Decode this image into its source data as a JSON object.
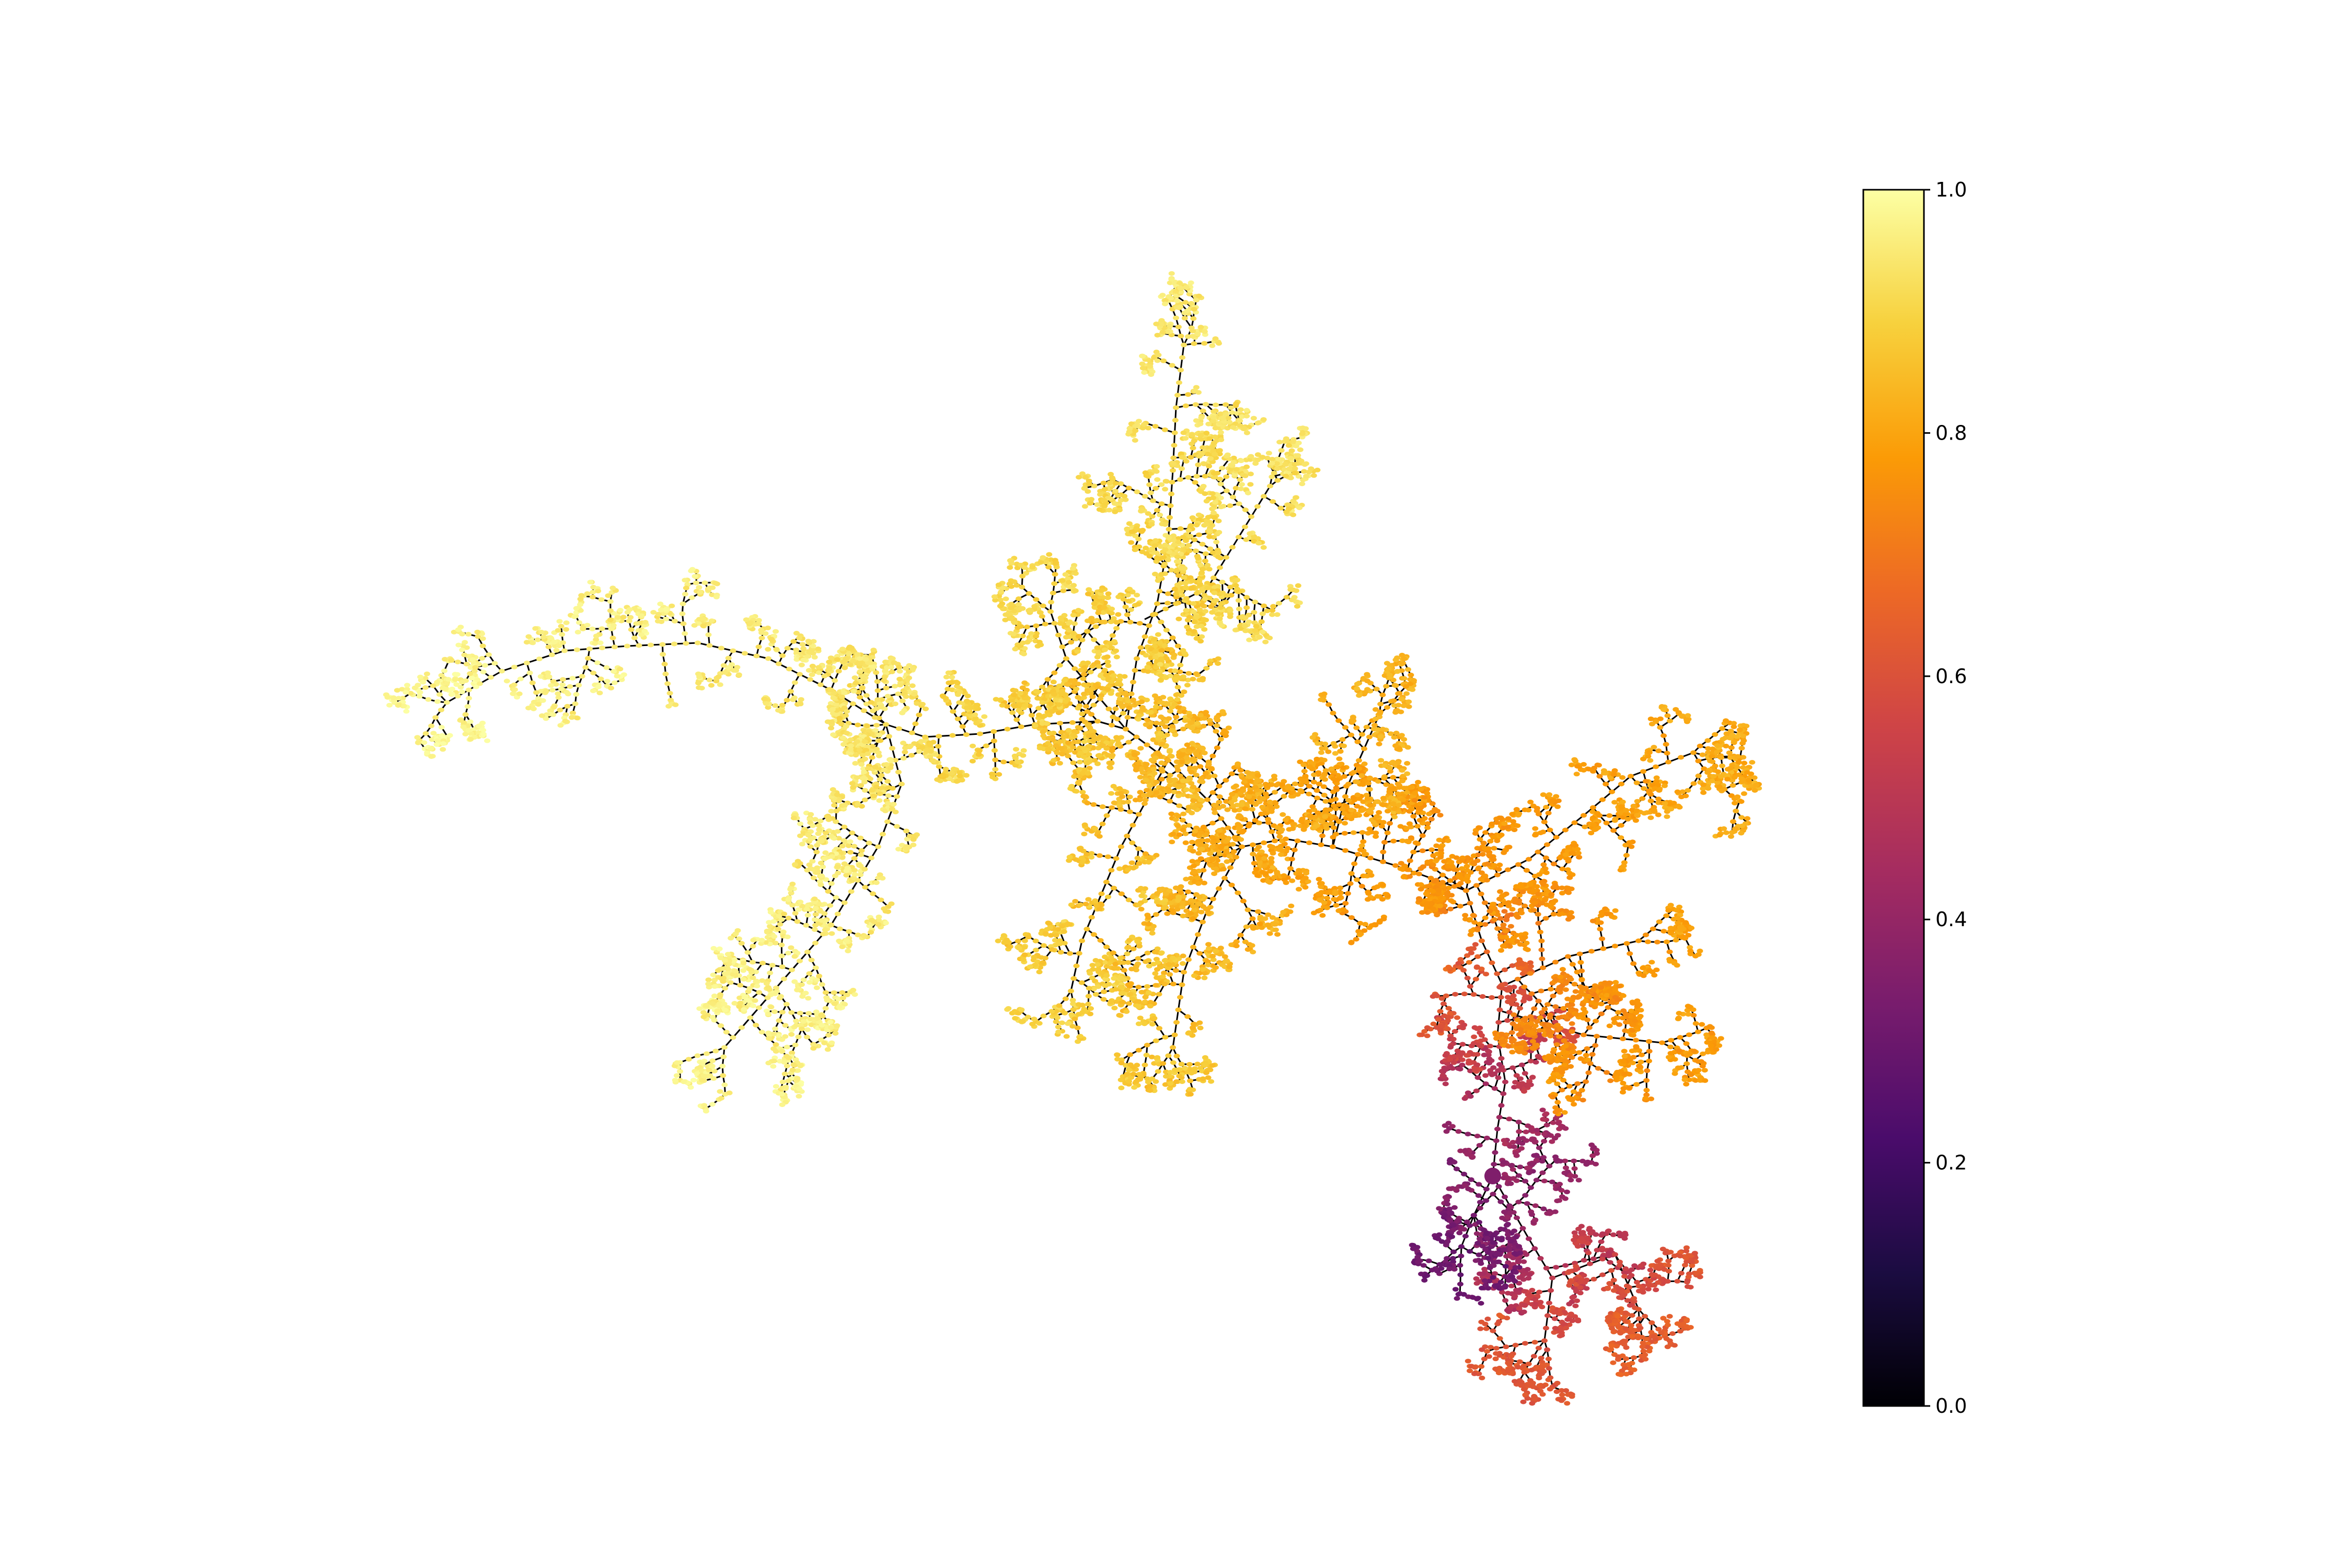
{
  "diagram": {
    "type": "branching-tree-network",
    "colormap": "inferno",
    "node_fill_range": "orange-to-pale-yellow",
    "edge_color": "#000000",
    "root_region": "lower-right",
    "root_value": 0.35
  },
  "colorbar": {
    "orientation": "vertical",
    "range": [
      0.0,
      1.0
    ],
    "ticks": [
      "0.0",
      "0.2",
      "0.4",
      "0.6",
      "0.8",
      "1.0"
    ],
    "colormap_stops": [
      "#000004",
      "#1b0c41",
      "#4a0c6b",
      "#781c6d",
      "#a52c60",
      "#cf4446",
      "#ed6925",
      "#fb9b06",
      "#f7d13d",
      "#fcffa4"
    ]
  }
}
